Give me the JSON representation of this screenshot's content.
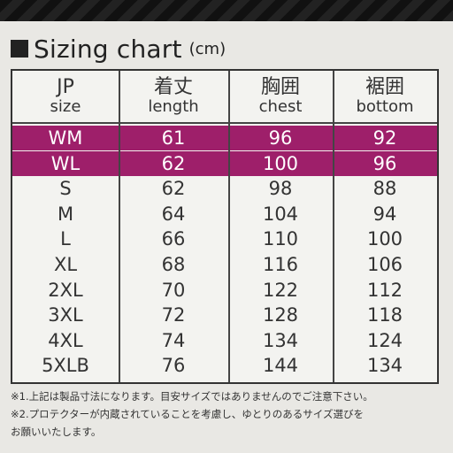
{
  "title": "Sizing chart",
  "unit": "(cm)",
  "headers": [
    {
      "jp": "JP",
      "en": "size"
    },
    {
      "jp": "着丈",
      "en": "length"
    },
    {
      "jp": "胸囲",
      "en": "chest"
    },
    {
      "jp": "裾囲",
      "en": "bottom"
    }
  ],
  "rows": [
    {
      "size": "WM",
      "length": "61",
      "chest": "96",
      "bottom": "92",
      "highlight": true
    },
    {
      "size": "WL",
      "length": "62",
      "chest": "100",
      "bottom": "96",
      "highlight": true
    },
    {
      "size": "S",
      "length": "62",
      "chest": "98",
      "bottom": "88",
      "highlight": false
    },
    {
      "size": "M",
      "length": "64",
      "chest": "104",
      "bottom": "94",
      "highlight": false
    },
    {
      "size": "L",
      "length": "66",
      "chest": "110",
      "bottom": "100",
      "highlight": false
    },
    {
      "size": "XL",
      "length": "68",
      "chest": "116",
      "bottom": "106",
      "highlight": false
    },
    {
      "size": "2XL",
      "length": "70",
      "chest": "122",
      "bottom": "112",
      "highlight": false
    },
    {
      "size": "3XL",
      "length": "72",
      "chest": "128",
      "bottom": "118",
      "highlight": false
    },
    {
      "size": "4XL",
      "length": "74",
      "chest": "134",
      "bottom": "124",
      "highlight": false
    },
    {
      "size": "5XLB",
      "length": "76",
      "chest": "144",
      "bottom": "134",
      "highlight": false
    }
  ],
  "notes": [
    "※1.上記は製品寸法になります。目安サイズではありませんのでご注意下さい。",
    "※2.プロテクターが内蔵されていることを考慮し、ゆとりのあるサイズ選びを",
    "お願いいたします。"
  ],
  "colors": {
    "highlight_band": "#9e1f6a",
    "card_background": "#e9e8e4",
    "text": "#333333"
  }
}
